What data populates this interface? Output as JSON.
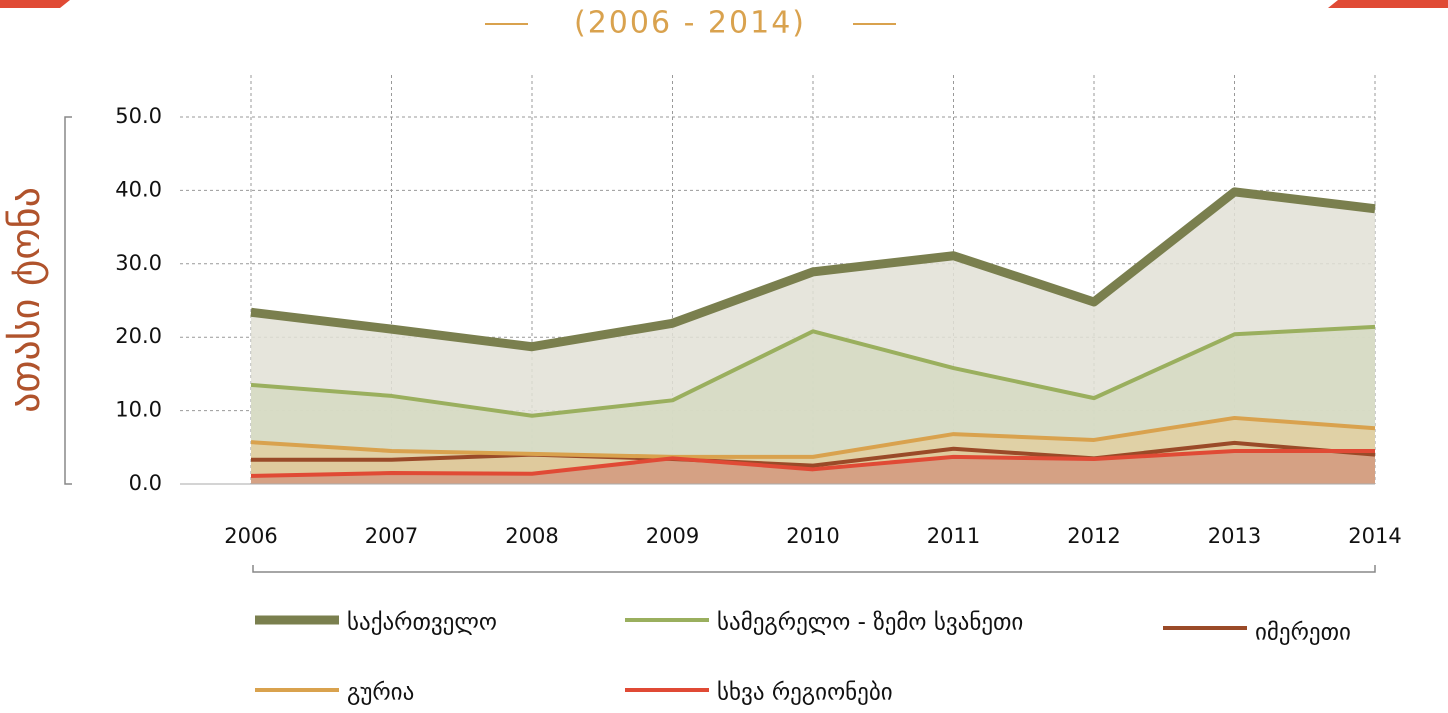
{
  "chart_data": {
    "type": "area",
    "title": "(2006 - 2014)",
    "y_label": "ათასი ტონა",
    "categories": [
      "2006",
      "2007",
      "2008",
      "2009",
      "2010",
      "2011",
      "2012",
      "2013",
      "2014"
    ],
    "series": [
      {
        "name": "საქართველო",
        "color": "#7a7f4e",
        "area_color": "#e2e1d6",
        "values": [
          23.4,
          21.1,
          18.7,
          21.9,
          28.9,
          31.1,
          24.8,
          39.8,
          37.5
        ]
      },
      {
        "name": "სამეგრელო - ზემო სვანეთი",
        "color": "#9aaf5e",
        "area_color": "#d5dbc2",
        "values": [
          13.5,
          12.0,
          9.3,
          11.4,
          20.8,
          15.8,
          11.7,
          20.4,
          21.4
        ]
      },
      {
        "name": "იმერეთი",
        "color": "#9a4a28",
        "area_color": "#cfa585",
        "values": [
          3.3,
          3.3,
          4.0,
          3.4,
          2.5,
          4.8,
          3.5,
          5.6,
          4.0
        ]
      },
      {
        "name": "გურია",
        "color": "#d9a24e",
        "area_color": "#e2cfa0",
        "values": [
          5.7,
          4.5,
          4.1,
          3.7,
          3.7,
          6.8,
          6.0,
          9.0,
          7.6
        ]
      },
      {
        "name": "სხვა რეგიონები",
        "color": "#e04a35",
        "area_color": "#d49a80",
        "values": [
          1.1,
          1.5,
          1.4,
          3.5,
          2.0,
          3.7,
          3.4,
          4.5,
          4.5
        ]
      }
    ],
    "ylim": [
      0,
      50
    ],
    "yticks": [
      {
        "value": 0,
        "label": "0.0"
      },
      {
        "value": 10,
        "label": "10.0"
      },
      {
        "value": 20,
        "label": "20.0"
      },
      {
        "value": 30,
        "label": "30.0"
      },
      {
        "value": 40,
        "label": "40.0"
      },
      {
        "value": 50,
        "label": "50.0"
      }
    ],
    "grid": true
  }
}
